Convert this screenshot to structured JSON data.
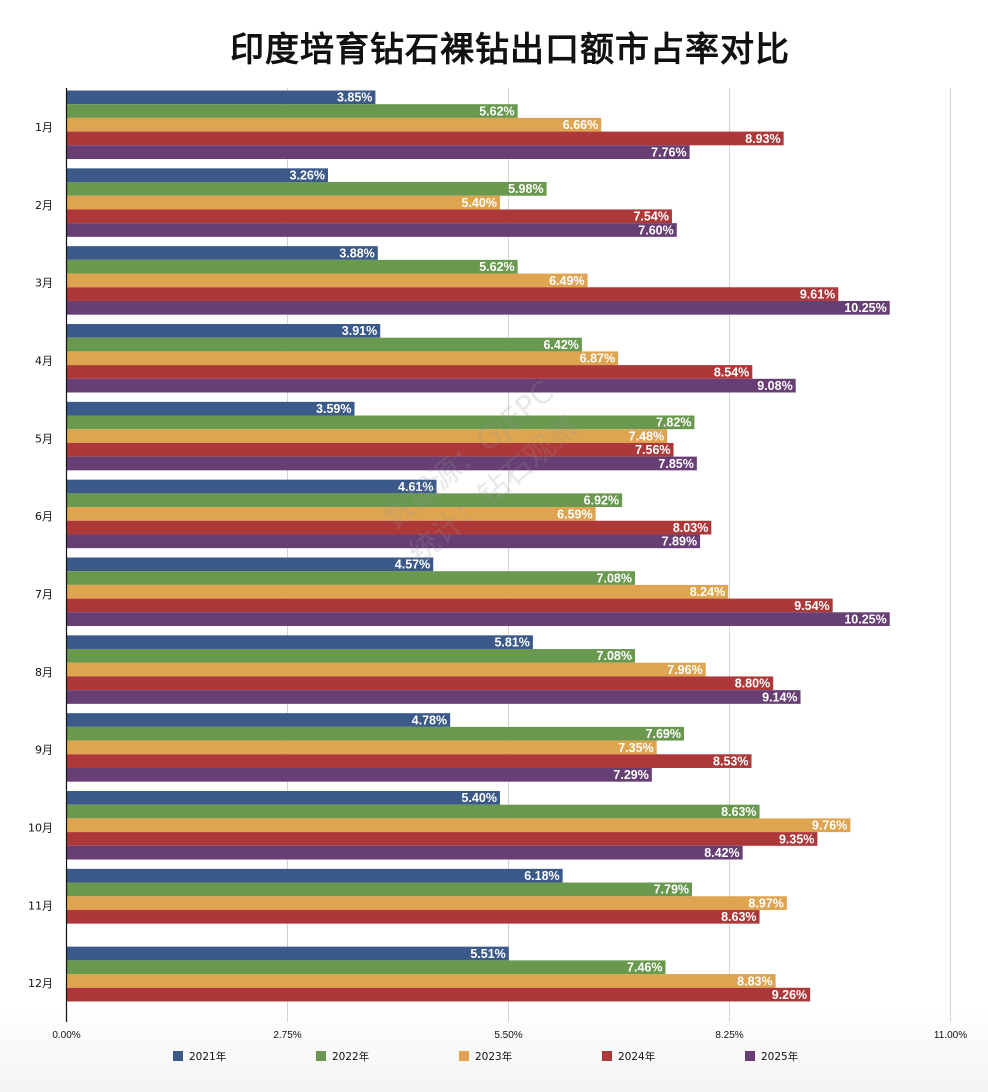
{
  "chart_data": {
    "type": "bar",
    "orientation": "horizontal",
    "title": "印度培育钻石裸钻出口额市占率对比",
    "xlabel": "",
    "ylabel": "",
    "xlim": [
      0,
      11
    ],
    "x_ticks": [
      "0.00%",
      "2.75%",
      "5.50%",
      "8.25%",
      "11.00%"
    ],
    "x_tick_values": [
      0,
      2.75,
      5.5,
      8.25,
      11
    ],
    "grid": true,
    "legend_position": "bottom",
    "categories": [
      "1月",
      "2月",
      "3月",
      "4月",
      "5月",
      "6月",
      "7月",
      "8月",
      "9月",
      "10月",
      "11月",
      "12月"
    ],
    "series": [
      {
        "name": "2021年",
        "color": "#3b5a8a",
        "values": [
          3.85,
          3.26,
          3.88,
          3.91,
          3.59,
          4.61,
          4.57,
          5.81,
          4.78,
          5.4,
          6.18,
          5.51
        ]
      },
      {
        "name": "2022年",
        "color": "#69984f",
        "values": [
          5.62,
          5.98,
          5.62,
          6.42,
          7.82,
          6.92,
          7.08,
          7.08,
          7.69,
          8.63,
          7.79,
          7.46
        ]
      },
      {
        "name": "2023年",
        "color": "#dea44f",
        "values": [
          6.66,
          5.4,
          6.49,
          6.87,
          7.48,
          6.59,
          8.24,
          7.96,
          7.35,
          9.76,
          8.97,
          8.83
        ]
      },
      {
        "name": "2024年",
        "color": "#ad3839",
        "values": [
          8.93,
          7.54,
          9.61,
          8.54,
          7.56,
          8.03,
          9.54,
          8.8,
          8.53,
          9.35,
          8.63,
          9.26
        ]
      },
      {
        "name": "2025年",
        "color": "#673f74",
        "values": [
          7.76,
          7.6,
          10.25,
          9.08,
          7.85,
          7.89,
          10.25,
          9.14,
          7.29,
          8.42,
          null,
          null
        ]
      }
    ],
    "value_format": "percent-2dp",
    "watermark": [
      "数据源：GJEPC",
      "统计：钻石观察"
    ]
  }
}
